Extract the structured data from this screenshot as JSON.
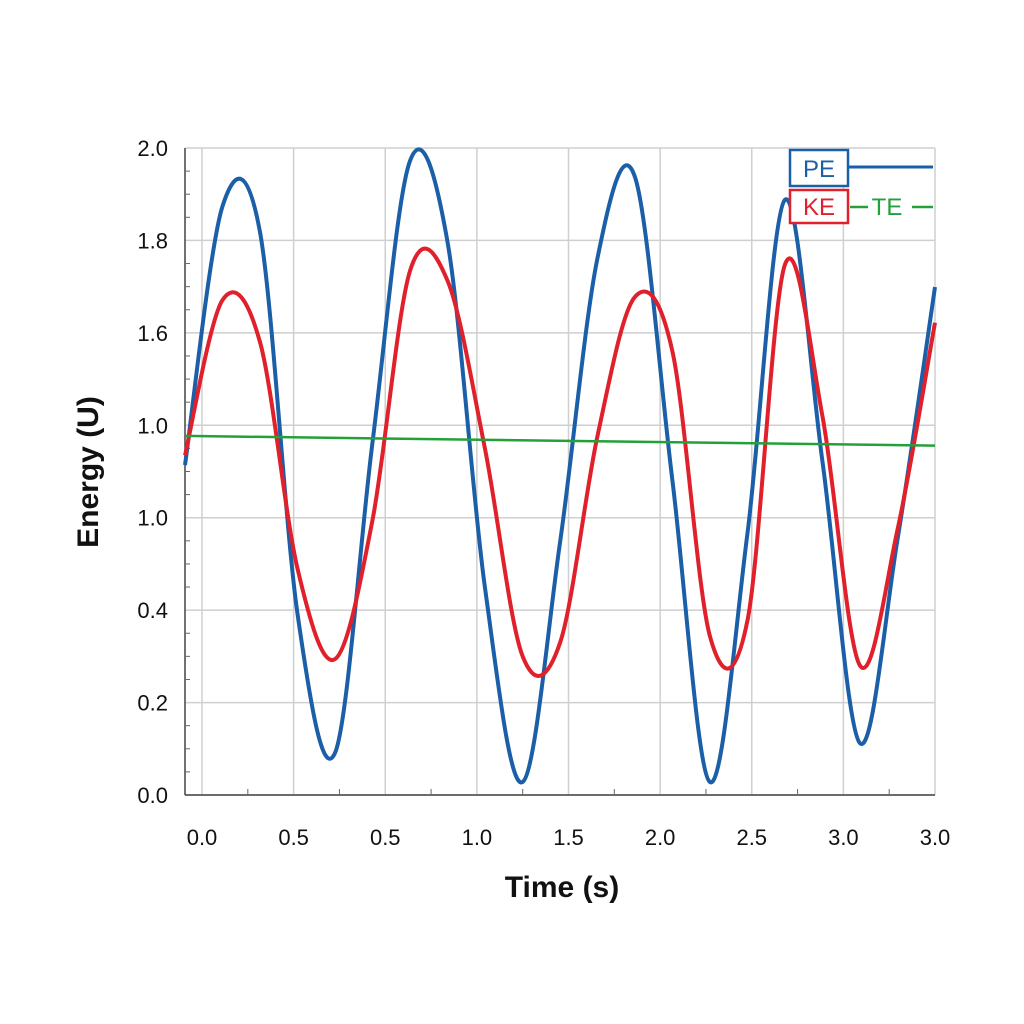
{
  "chart_data": {
    "type": "line",
    "title": "",
    "xlabel": "Time (s)",
    "ylabel": "Energy (U)",
    "x_tick_labels": [
      "0.0",
      "0.5",
      "0.5",
      "1.0",
      "1.5",
      "2.0",
      "2.5",
      "3.0",
      "3.0"
    ],
    "y_tick_labels": [
      "0.0",
      "0.2",
      "0.4",
      "1.0",
      "1.0",
      "1.6",
      "1.8",
      "2.0"
    ],
    "xlim": [
      0,
      3.0
    ],
    "ylim": [
      0,
      2.0
    ],
    "grid": true,
    "legend_position": "top-right",
    "series": [
      {
        "name": "PE",
        "color": "#1a5fa8",
        "x": [
          0.0,
          0.15,
          0.3,
          0.45,
          0.6,
          0.75,
          0.9,
          1.05,
          1.2,
          1.35,
          1.5,
          1.65,
          1.8,
          1.95,
          2.1,
          2.25,
          2.4,
          2.55,
          2.7,
          2.85,
          3.0
        ],
        "y": [
          1.02,
          1.82,
          1.74,
          0.56,
          0.13,
          1.09,
          1.96,
          1.71,
          0.64,
          0.04,
          0.78,
          1.66,
          1.91,
          0.97,
          0.04,
          0.81,
          1.84,
          1.03,
          0.16,
          0.79,
          1.57
        ]
      },
      {
        "name": "KE",
        "color": "#e0202a",
        "x": [
          0.0,
          0.15,
          0.3,
          0.45,
          0.6,
          0.75,
          0.9,
          1.05,
          1.2,
          1.35,
          1.5,
          1.65,
          1.8,
          1.95,
          2.1,
          2.25,
          2.4,
          2.55,
          2.7,
          2.85,
          3.0
        ],
        "y": [
          1.05,
          1.53,
          1.4,
          0.7,
          0.42,
          0.85,
          1.62,
          1.59,
          1.07,
          0.43,
          0.47,
          1.11,
          1.54,
          1.37,
          0.49,
          0.54,
          1.64,
          1.17,
          0.4,
          0.82,
          1.46
        ]
      },
      {
        "name": "TE",
        "color": "#24a03a",
        "x": [
          0.0,
          3.0
        ],
        "y": [
          1.11,
          1.08
        ]
      }
    ]
  }
}
